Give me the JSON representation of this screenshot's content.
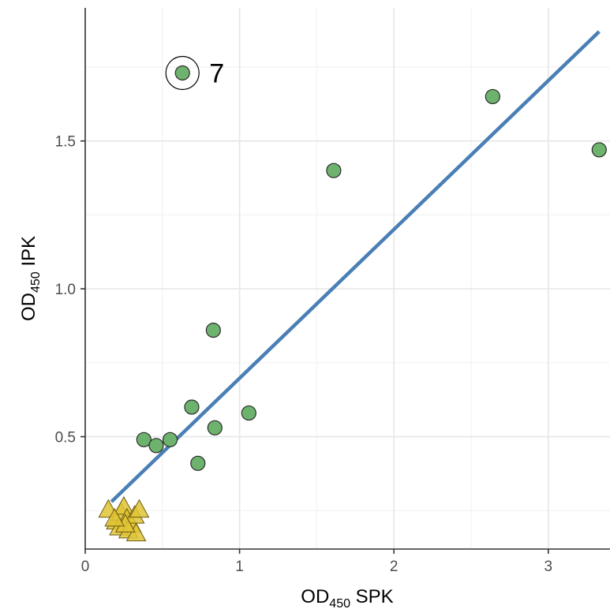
{
  "chart_data": {
    "type": "scatter",
    "title": "",
    "xlabel": {
      "prefix": "OD",
      "sub": "450",
      "suffix": " SPK"
    },
    "ylabel": {
      "prefix": "OD",
      "sub": "450",
      "suffix": " IPK"
    },
    "xlim": [
      0,
      3.4
    ],
    "ylim": [
      0.12,
      1.95
    ],
    "x_ticks": [
      0,
      1,
      2,
      3
    ],
    "x_tick_labels": [
      "0",
      "1",
      "2",
      "3"
    ],
    "y_ticks": [
      0.5,
      1.0,
      1.5
    ],
    "y_tick_labels": [
      "0.5",
      "1.0",
      "1.5"
    ],
    "grid": true,
    "series": [
      {
        "marker": "circle",
        "color": "#6db36d",
        "points": [
          {
            "x": 0.63,
            "y": 1.73
          },
          {
            "x": 2.64,
            "y": 1.65
          },
          {
            "x": 1.61,
            "y": 1.4
          },
          {
            "x": 3.33,
            "y": 1.47
          },
          {
            "x": 0.83,
            "y": 0.86
          },
          {
            "x": 0.69,
            "y": 0.6
          },
          {
            "x": 1.06,
            "y": 0.58
          },
          {
            "x": 0.84,
            "y": 0.53
          },
          {
            "x": 0.38,
            "y": 0.49
          },
          {
            "x": 0.55,
            "y": 0.49
          },
          {
            "x": 0.46,
            "y": 0.47
          },
          {
            "x": 0.73,
            "y": 0.41
          }
        ]
      },
      {
        "marker": "triangle",
        "color": "#e0c435",
        "points": [
          {
            "x": 0.15,
            "y": 0.25
          },
          {
            "x": 0.2,
            "y": 0.21
          },
          {
            "x": 0.23,
            "y": 0.24
          },
          {
            "x": 0.25,
            "y": 0.26
          },
          {
            "x": 0.27,
            "y": 0.22
          },
          {
            "x": 0.3,
            "y": 0.2
          },
          {
            "x": 0.32,
            "y": 0.23
          },
          {
            "x": 0.35,
            "y": 0.25
          },
          {
            "x": 0.22,
            "y": 0.19
          },
          {
            "x": 0.28,
            "y": 0.18
          },
          {
            "x": 0.33,
            "y": 0.17
          },
          {
            "x": 0.26,
            "y": 0.2
          },
          {
            "x": 0.19,
            "y": 0.22
          }
        ]
      }
    ],
    "fit_line": {
      "color": "#4a7fb5",
      "x": [
        0.17,
        3.33
      ],
      "y": [
        0.28,
        1.87
      ]
    },
    "annotation": {
      "label": "7",
      "x": 0.63,
      "y": 1.73
    }
  }
}
